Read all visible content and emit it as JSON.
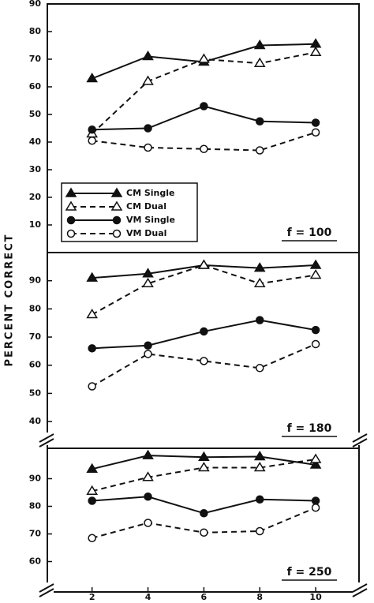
{
  "chart_data": [
    {
      "type": "line",
      "annotation": "f = 100",
      "x": [
        2,
        4,
        6,
        8,
        10
      ],
      "xlim": [
        0.4,
        11.55
      ],
      "ylim": [
        0,
        90
      ],
      "yticks": [
        10,
        20,
        30,
        40,
        50,
        60,
        70,
        80,
        90
      ],
      "legend": "lower left",
      "series": [
        {
          "name": "CM Single",
          "color": "#111",
          "marker": "triangle",
          "filled": true,
          "dashed": false,
          "values": [
            63,
            71,
            69,
            75,
            75.5
          ]
        },
        {
          "name": "CM Dual",
          "color": "#111",
          "marker": "triangle",
          "filled": false,
          "dashed": true,
          "values": [
            43,
            62,
            70,
            68.5,
            72.5
          ]
        },
        {
          "name": "VM Single",
          "color": "#111",
          "marker": "circle",
          "filled": true,
          "dashed": false,
          "values": [
            44.5,
            45,
            53,
            47.5,
            47
          ]
        },
        {
          "name": "VM Dual",
          "color": "#111",
          "marker": "circle",
          "filled": false,
          "dashed": true,
          "values": [
            40.5,
            38,
            37.5,
            37,
            43.5
          ]
        }
      ]
    },
    {
      "type": "line",
      "annotation": "f = 180",
      "ylabel": "PERCENT CORRECT",
      "x": [
        2,
        4,
        6,
        8,
        10
      ],
      "xlim": [
        0.4,
        11.55
      ],
      "ylim": [
        30.5,
        100
      ],
      "yticks": [
        40,
        50,
        60,
        70,
        80,
        90
      ],
      "series": [
        {
          "color": "#111",
          "marker": "triangle",
          "filled": true,
          "dashed": false,
          "values": [
            91,
            92.5,
            95.5,
            94.5,
            95.5
          ]
        },
        {
          "color": "#111",
          "marker": "triangle",
          "filled": false,
          "dashed": true,
          "values": [
            78,
            89,
            95.5,
            89,
            92
          ]
        },
        {
          "color": "#111",
          "marker": "circle",
          "filled": true,
          "dashed": false,
          "values": [
            66,
            67,
            72,
            76,
            72.5
          ]
        },
        {
          "color": "#111",
          "marker": "circle",
          "filled": false,
          "dashed": true,
          "values": [
            52.5,
            64,
            61.5,
            59,
            67.5
          ]
        }
      ]
    },
    {
      "type": "line",
      "annotation": "f = 250",
      "x": [
        2,
        4,
        6,
        8,
        10
      ],
      "xlim": [
        0.4,
        11.55
      ],
      "xticks": [
        2,
        4,
        6,
        8,
        10
      ],
      "ylim": [
        49,
        101
      ],
      "yticks": [
        60,
        70,
        80,
        90
      ],
      "series": [
        {
          "color": "#111",
          "marker": "triangle",
          "filled": true,
          "dashed": false,
          "values": [
            93.5,
            98.4,
            97.8,
            98,
            95
          ]
        },
        {
          "color": "#111",
          "marker": "triangle",
          "filled": false,
          "dashed": true,
          "values": [
            85.5,
            90.5,
            94,
            94,
            97
          ]
        },
        {
          "color": "#111",
          "marker": "circle",
          "filled": true,
          "dashed": false,
          "values": [
            82,
            83.5,
            77.5,
            82.5,
            82
          ]
        },
        {
          "color": "#111",
          "marker": "circle",
          "filled": false,
          "dashed": true,
          "values": [
            68.5,
            74,
            70.5,
            71,
            79.5
          ]
        }
      ]
    }
  ]
}
